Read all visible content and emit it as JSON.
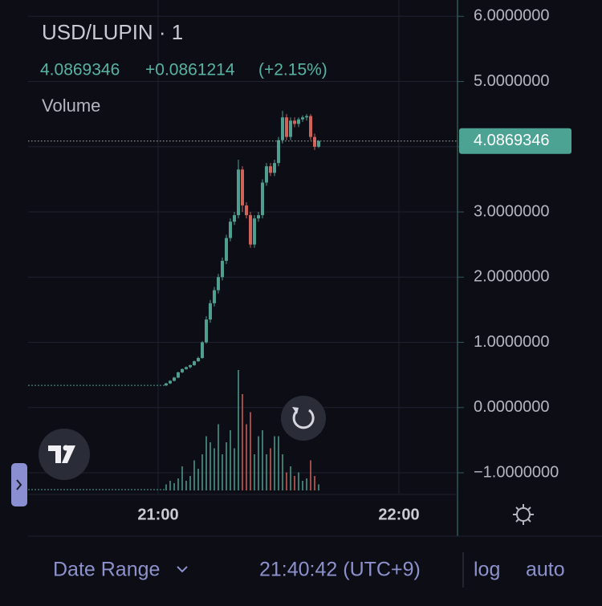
{
  "chart_data": {
    "type": "candlestick",
    "title": "USD/LUPIN · 1",
    "last_price": 4.0869346,
    "change": "+0.0861214",
    "change_pct": "(+2.15%)",
    "volume_label": "Volume",
    "up_color": "#4f9e8f",
    "down_color": "#d0625a",
    "xlim": [
      1227.6,
      1334.6
    ],
    "xticks": [
      {
        "value": 1260,
        "label": "21:00"
      },
      {
        "value": 1320,
        "label": "22:00"
      }
    ],
    "ylim": [
      -1.32,
      6.25
    ],
    "yticks": [
      {
        "value": 6,
        "label": "6.0000000"
      },
      {
        "value": 5,
        "label": "5.0000000"
      },
      {
        "value": 4,
        "label": "4.0000000"
      },
      {
        "value": 3,
        "label": "3.0000000"
      },
      {
        "value": 2,
        "label": "2.0000000"
      },
      {
        "value": 1,
        "label": "1.0000000"
      },
      {
        "value": 0,
        "label": "0.0000000"
      },
      {
        "value": -1,
        "label": "−1.0000000"
      }
    ],
    "grid": true,
    "x": [
      1262,
      1263,
      1264,
      1265,
      1266,
      1267,
      1268,
      1269,
      1270,
      1271,
      1272,
      1273,
      1274,
      1275,
      1276,
      1277,
      1278,
      1279,
      1280,
      1281,
      1282,
      1283,
      1284,
      1285,
      1286,
      1287,
      1288,
      1289,
      1290,
      1291,
      1292,
      1293,
      1294,
      1295,
      1296,
      1297,
      1298,
      1299,
      1300
    ],
    "open": [
      0.34,
      0.37,
      0.41,
      0.46,
      0.54,
      0.59,
      0.62,
      0.65,
      0.71,
      0.76,
      1.0,
      1.35,
      1.6,
      1.8,
      2.0,
      2.25,
      2.6,
      2.85,
      2.95,
      3.65,
      3.1,
      2.95,
      2.5,
      2.9,
      2.95,
      3.45,
      3.7,
      3.6,
      3.75,
      4.1,
      4.45,
      4.15,
      4.4,
      4.35,
      4.42,
      4.45,
      4.47,
      4.15,
      4.0
    ],
    "high": [
      0.38,
      0.42,
      0.47,
      0.55,
      0.6,
      0.63,
      0.66,
      0.72,
      0.78,
      1.02,
      1.4,
      1.65,
      1.85,
      2.05,
      2.3,
      2.65,
      2.9,
      3.0,
      3.8,
      3.7,
      3.15,
      3.0,
      2.95,
      3.0,
      3.5,
      3.75,
      3.75,
      3.8,
      4.15,
      4.55,
      4.5,
      4.45,
      4.45,
      4.45,
      4.48,
      4.5,
      4.5,
      4.2,
      4.1
    ],
    "low": [
      0.33,
      0.36,
      0.4,
      0.45,
      0.53,
      0.58,
      0.6,
      0.64,
      0.7,
      0.75,
      0.98,
      1.3,
      1.55,
      1.75,
      1.95,
      2.2,
      2.55,
      2.8,
      2.9,
      3.0,
      2.9,
      2.45,
      2.45,
      2.85,
      2.9,
      3.4,
      3.55,
      3.55,
      3.7,
      4.05,
      4.1,
      4.1,
      4.3,
      4.3,
      4.38,
      4.4,
      4.1,
      3.95,
      3.98
    ],
    "close": [
      0.37,
      0.41,
      0.46,
      0.54,
      0.59,
      0.62,
      0.65,
      0.71,
      0.76,
      1.0,
      1.35,
      1.6,
      1.8,
      2.0,
      2.25,
      2.6,
      2.85,
      2.95,
      3.65,
      3.1,
      2.95,
      2.5,
      2.9,
      2.95,
      3.45,
      3.7,
      3.6,
      3.75,
      4.1,
      4.45,
      4.15,
      4.4,
      4.35,
      4.42,
      4.45,
      4.47,
      4.15,
      4.0,
      4.0869346
    ],
    "volume": [
      5,
      8,
      6,
      10,
      20,
      8,
      12,
      25,
      18,
      30,
      45,
      40,
      35,
      55,
      30,
      40,
      50,
      35,
      100,
      80,
      55,
      65,
      30,
      45,
      50,
      30,
      35,
      45,
      45,
      30,
      15,
      20,
      12,
      15,
      8,
      10,
      25,
      12,
      5
    ],
    "footer": {
      "date_range": "Date Range",
      "time": "21:40:42 (UTC+9)",
      "log": "log",
      "auto": "auto"
    }
  }
}
